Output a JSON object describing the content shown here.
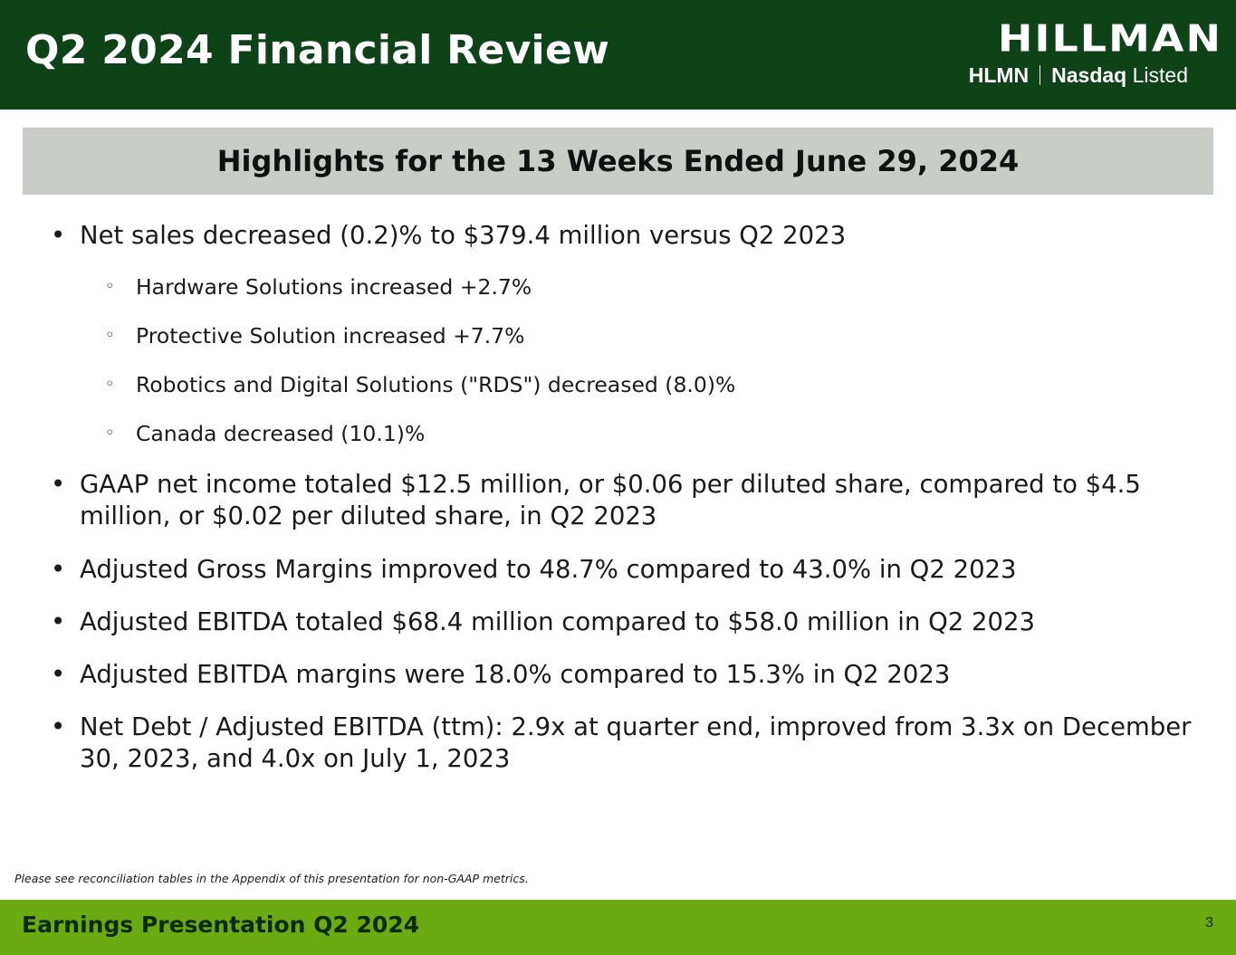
{
  "header": {
    "title": "Q2 2024 Financial Review",
    "logo": {
      "wordmark": "HILLMAN",
      "ticker": "HLMN",
      "exchange_bold": "Nasdaq",
      "exchange_light": "Listed"
    }
  },
  "banner": "Highlights for the 13 Weeks Ended June 29, 2024",
  "bullets": [
    {
      "text": "Net sales decreased (0.2)% to $379.4 million versus Q2 2023"
    },
    {
      "text": "GAAP net income totaled $12.5 million, or $0.06 per diluted share, compared to $4.5 million, or $0.02 per diluted share, in Q2 2023"
    },
    {
      "text": "Adjusted Gross Margins improved to 48.7% compared to 43.0% in Q2 2023"
    },
    {
      "text": "Adjusted EBITDA totaled $68.4 million compared to $58.0 million in Q2 2023"
    },
    {
      "text": "Adjusted EBITDA margins were 18.0% compared to 15.3% in Q2 2023"
    },
    {
      "text": "Net Debt / Adjusted EBITDA (ttm): 2.9x at quarter end, improved from 3.3x on December 30, 2023, and 4.0x on July 1, 2023"
    }
  ],
  "sub_bullets": [
    "Hardware Solutions increased +2.7%",
    "Protective Solution increased +7.7%",
    "Robotics and Digital Solutions (\"RDS\") decreased (8.0)%",
    "Canada decreased (10.1)%"
  ],
  "bullet_glyph": "•",
  "sub_bullet_glyph": "◦",
  "footnote": "Please see reconciliation tables in the Appendix of this presentation for non-GAAP metrics.",
  "footer": {
    "title": "Earnings Presentation Q2 2024",
    "page_number": "3"
  },
  "colors": {
    "header_bg": "#0e4317",
    "banner_bg": "#c9ccc7",
    "footer_bg": "#6aab11"
  }
}
